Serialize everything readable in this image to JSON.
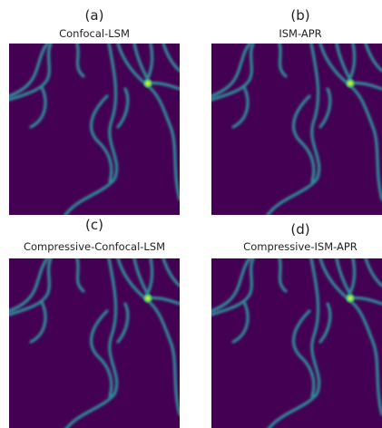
{
  "panels": [
    {
      "label": "(a)",
      "title": "Confocal-LSM"
    },
    {
      "label": "(b)",
      "title": "ISM-APR"
    },
    {
      "label": "(c)",
      "title": "Compressive-Confocal-LSM"
    },
    {
      "label": "(d)",
      "title": "Compressive-ISM-APR"
    }
  ]
}
